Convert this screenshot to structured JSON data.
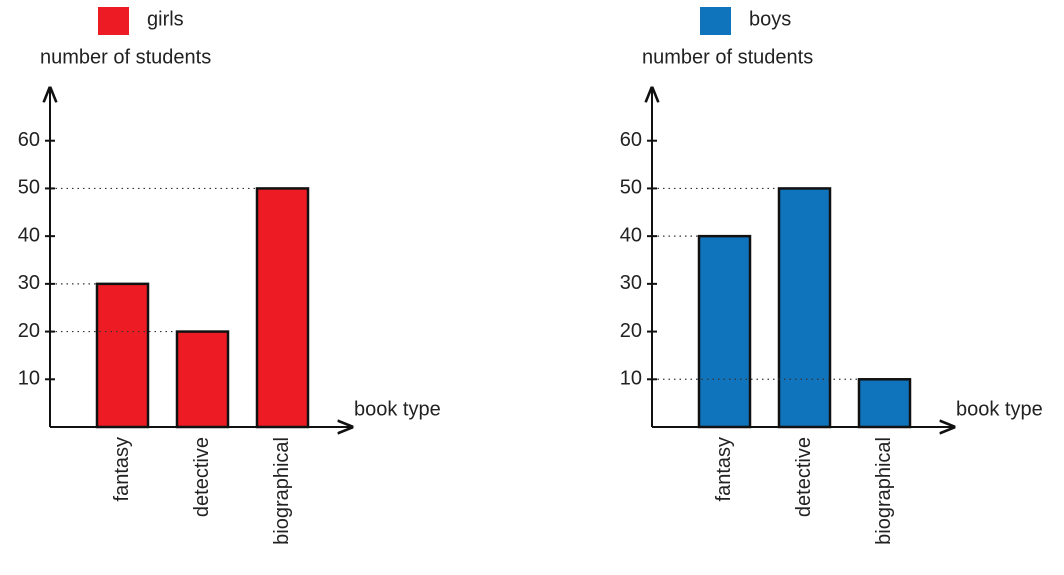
{
  "chart_data": [
    {
      "type": "bar",
      "ylabel": "number of students",
      "xlabel": "book type",
      "categories": [
        "fantasy",
        "detective",
        "biographical"
      ],
      "series": [
        {
          "name": "girls",
          "color": "#ed1c24",
          "values": [
            30,
            20,
            50
          ]
        }
      ],
      "ylim": [
        0,
        70
      ],
      "yticks": [
        10,
        20,
        30,
        40,
        50,
        60
      ]
    },
    {
      "type": "bar",
      "ylabel": "number of students",
      "xlabel": "book type",
      "categories": [
        "fantasy",
        "detective",
        "biographical"
      ],
      "series": [
        {
          "name": "boys",
          "color": "#1074bc",
          "values": [
            40,
            50,
            10
          ]
        }
      ],
      "ylim": [
        0,
        70
      ],
      "yticks": [
        10,
        20,
        30,
        40,
        50,
        60
      ]
    }
  ]
}
